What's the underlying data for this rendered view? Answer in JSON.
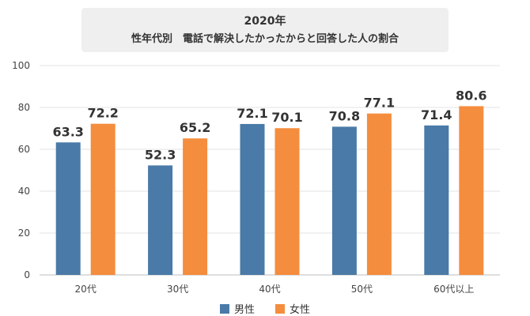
{
  "chart_data": {
    "type": "bar",
    "title": "2020年",
    "subtitle": "性年代別　電話で解決したかったからと回答した人の割合",
    "categories": [
      "20代",
      "30代",
      "40代",
      "50代",
      "60代以上"
    ],
    "series": [
      {
        "name": "男性",
        "color": "#4a7aa7",
        "values": [
          63.3,
          52.3,
          72.1,
          70.8,
          71.4
        ]
      },
      {
        "name": "女性",
        "color": "#f58d3e",
        "values": [
          72.2,
          65.2,
          70.1,
          77.1,
          80.6
        ]
      }
    ],
    "ylim": [
      0,
      100
    ],
    "yticks": [
      0,
      20,
      40,
      60,
      80,
      100
    ],
    "grid": true,
    "legend": "bottom-center",
    "xlabel": "",
    "ylabel": ""
  }
}
